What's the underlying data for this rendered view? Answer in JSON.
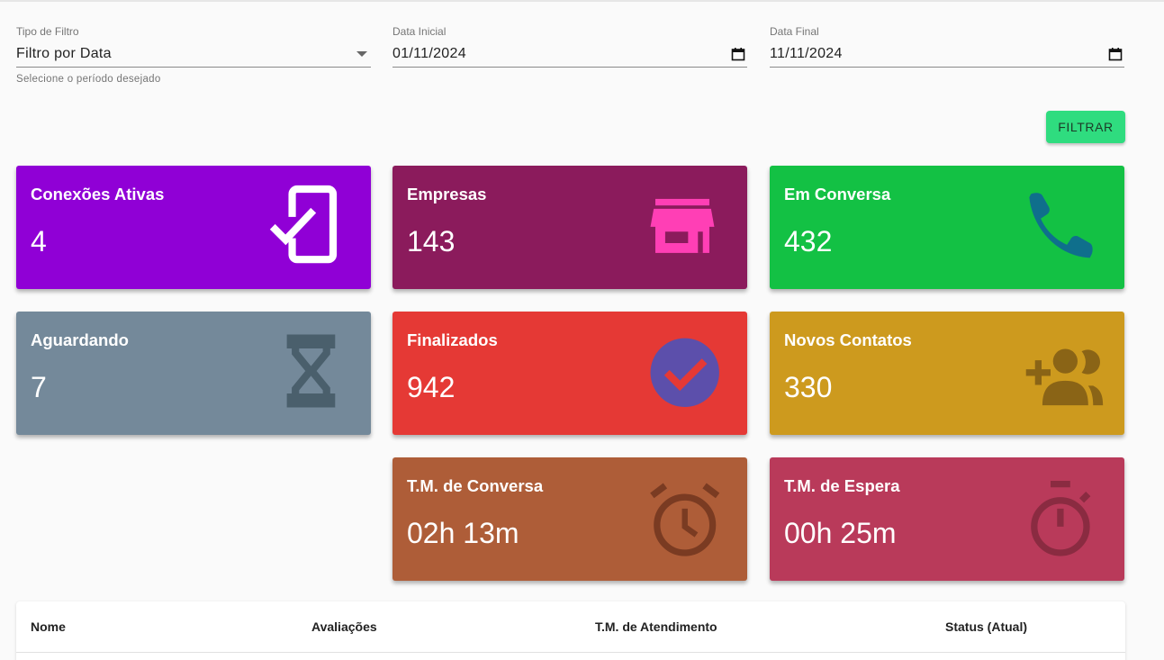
{
  "filters": [
    {
      "label": "Tipo de Filtro",
      "value": "Filtro por Data",
      "helper": "Selecione o período desejado"
    },
    {
      "label": "Data Inicial",
      "value": "01/11/2024"
    },
    {
      "label": "Data Final",
      "value": "11/11/2024"
    }
  ],
  "button": "FILTRAR",
  "cards": [
    {
      "title": "Conexões Ativas",
      "value": 4
    },
    {
      "title": "Empresas",
      "value": 143
    },
    {
      "title": "Em Conversa",
      "value": 432
    },
    {
      "title": "Aguardando",
      "value": 7
    },
    {
      "title": "Finalizados",
      "value": 942
    },
    {
      "title": "Novos Contatos",
      "value": 330
    },
    {
      "title": "T.M. de Conversa",
      "value": "02h 13m"
    },
    {
      "title": "T.M. de Espera",
      "value": "00h 25m"
    }
  ],
  "table": {
    "headers": [
      "Nome",
      "Avaliações",
      "T.M. de Atendimento",
      "Status (Atual)"
    ]
  }
}
